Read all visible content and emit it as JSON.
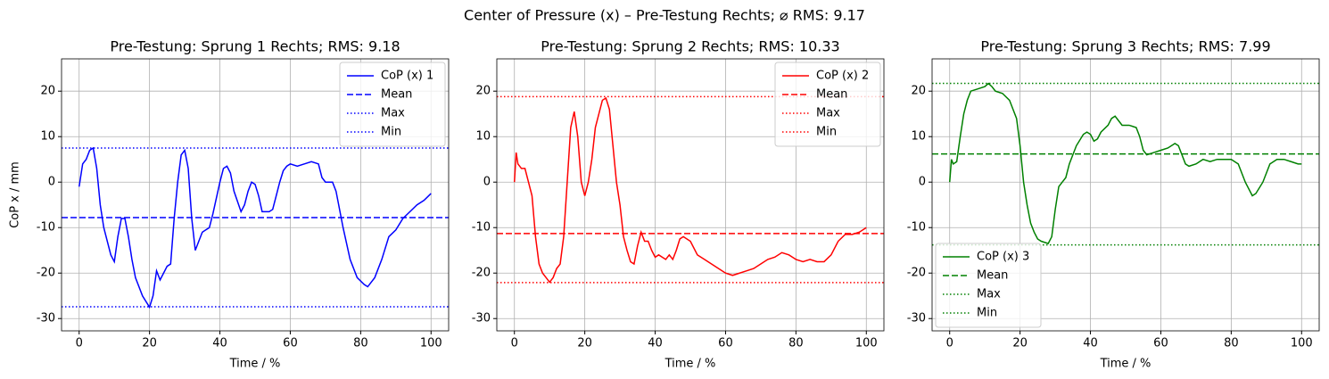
{
  "title": "Center of Pressure (x) – Pre-Testung Rechts; ⌀ RMS: 9.17",
  "chart_data": [
    {
      "type": "line",
      "title": "Pre-Testung: Sprung 1 Rechts; RMS: 9.18",
      "xlabel": "Time / %",
      "ylabel": "CoP x / mm",
      "xlim": [
        -5,
        105
      ],
      "ylim": [
        -32.7,
        27.1
      ],
      "xticks": [
        0,
        20,
        40,
        60,
        80,
        100
      ],
      "yticks": [
        -30,
        -20,
        -10,
        0,
        10,
        20
      ],
      "grid": true,
      "legend": "upper right",
      "x": [
        0,
        1,
        2,
        3,
        4,
        5,
        6,
        7,
        8,
        9,
        10,
        11,
        12,
        13,
        14,
        15,
        16,
        18,
        20,
        21,
        22,
        23,
        24,
        25,
        26,
        27,
        28,
        29,
        30,
        31,
        32,
        33,
        34,
        35,
        36,
        37,
        38,
        40,
        41,
        42,
        43,
        44,
        46,
        47,
        48,
        49,
        50,
        51,
        52,
        54,
        55,
        56,
        57,
        58,
        59,
        60,
        62,
        64,
        66,
        68,
        69,
        70,
        72,
        73,
        75,
        77,
        79,
        81,
        82,
        84,
        86,
        88,
        90,
        92,
        94,
        96,
        98,
        100
      ],
      "series": [
        {
          "name": "CoP (x) 1",
          "color": "#0000ff",
          "values": [
            -1,
            4,
            5,
            7,
            7.5,
            3,
            -5,
            -10,
            -13,
            -16,
            -17.5,
            -12,
            -8,
            -8,
            -12,
            -17,
            -21,
            -25,
            -27.5,
            -25,
            -19.5,
            -21.5,
            -20,
            -18.5,
            -18,
            -8,
            0,
            6,
            7,
            3,
            -8,
            -15,
            -13,
            -11,
            -10.5,
            -10,
            -7,
            0,
            3,
            3.5,
            2,
            -2,
            -6.5,
            -5,
            -2,
            0,
            -0.5,
            -3,
            -6.5,
            -6.5,
            -6,
            -3,
            0,
            2.5,
            3.5,
            4,
            3.5,
            4,
            4.5,
            4,
            1,
            0,
            0,
            -2,
            -10,
            -17,
            -21,
            -22.5,
            -23,
            -21,
            -17,
            -12,
            -10.5,
            -8,
            -6.5,
            -5,
            -4,
            -2.5
          ]
        }
      ],
      "hlines": [
        {
          "name": "Mean",
          "value": -7.8,
          "style": "dashed",
          "color": "#0000ff"
        },
        {
          "name": "Max",
          "value": 7.5,
          "style": "dotted",
          "color": "#0000ff"
        },
        {
          "name": "Min",
          "value": -27.4,
          "style": "dotted",
          "color": "#0000ff"
        }
      ]
    },
    {
      "type": "line",
      "title": "Pre-Testung: Sprung 2 Rechts; RMS: 10.33",
      "xlabel": "Time / %",
      "xlim": [
        -5,
        105
      ],
      "ylim": [
        -32.7,
        27.1
      ],
      "xticks": [
        0,
        20,
        40,
        60,
        80,
        100
      ],
      "yticks": [
        -30,
        -20,
        -10,
        0,
        10,
        20
      ],
      "grid": true,
      "legend": "upper right",
      "x": [
        0,
        0.5,
        1,
        2,
        3,
        4,
        5,
        6,
        7,
        8,
        9,
        10,
        11,
        12,
        13,
        14,
        15,
        16,
        17,
        18,
        19,
        20,
        21,
        22,
        23,
        25,
        26,
        27,
        28,
        29,
        30,
        31,
        32,
        33,
        34,
        35,
        36,
        37,
        38,
        39,
        40,
        41,
        42,
        43,
        44,
        45,
        46,
        47,
        48,
        50,
        52,
        54,
        56,
        58,
        60,
        62,
        64,
        66,
        68,
        70,
        72,
        74,
        76,
        78,
        80,
        82,
        84,
        86,
        88,
        90,
        92,
        94,
        96,
        98,
        100
      ],
      "series": [
        {
          "name": "CoP (x) 2",
          "color": "#ff0000",
          "values": [
            0,
            6.5,
            4,
            3,
            3,
            0,
            -3,
            -12,
            -18,
            -20,
            -21,
            -22,
            -21,
            -19,
            -18,
            -12,
            0,
            12,
            15.5,
            10,
            0,
            -3,
            0,
            5,
            12,
            18,
            18.5,
            16,
            8,
            0,
            -5,
            -12,
            -15,
            -17.5,
            -18,
            -14,
            -11,
            -13,
            -13,
            -15,
            -16.5,
            -16,
            -16.5,
            -17,
            -16,
            -17,
            -15,
            -12.5,
            -12,
            -13,
            -16,
            -17,
            -18,
            -19,
            -20,
            -20.5,
            -20,
            -19.5,
            -19,
            -18,
            -17,
            -16.5,
            -15.5,
            -16,
            -17,
            -17.5,
            -17,
            -17.5,
            -17.5,
            -16,
            -13,
            -11.5,
            -11.5,
            -11,
            -10
          ]
        }
      ],
      "hlines": [
        {
          "name": "Mean",
          "value": -11.3,
          "style": "dashed",
          "color": "#ff0000"
        },
        {
          "name": "Max",
          "value": 18.8,
          "style": "dotted",
          "color": "#ff0000"
        },
        {
          "name": "Min",
          "value": -22.1,
          "style": "dotted",
          "color": "#ff0000"
        }
      ]
    },
    {
      "type": "line",
      "title": "Pre-Testung: Sprung 3 Rechts; RMS: 7.99",
      "xlabel": "Time / %",
      "xlim": [
        -5,
        105
      ],
      "ylim": [
        -32.7,
        27.1
      ],
      "xticks": [
        0,
        20,
        40,
        60,
        80,
        100
      ],
      "yticks": [
        -30,
        -20,
        -10,
        0,
        10,
        20
      ],
      "grid": true,
      "legend": "lower left",
      "x": [
        0,
        0.5,
        1,
        2,
        3,
        4,
        5,
        6,
        8,
        10,
        11,
        12,
        13,
        15,
        17,
        19,
        20,
        21,
        22,
        23,
        24,
        25,
        26,
        28,
        29,
        30,
        31,
        32,
        33,
        34,
        36,
        38,
        39,
        40,
        41,
        42,
        43,
        45,
        46,
        47,
        48,
        49,
        51,
        53,
        54,
        55,
        56,
        58,
        60,
        62,
        64,
        65,
        66,
        67,
        68,
        70,
        72,
        74,
        76,
        78,
        80,
        82,
        84,
        86,
        87,
        89,
        91,
        93,
        95,
        97,
        99,
        100
      ],
      "series": [
        {
          "name": "CoP (x) 3",
          "color": "#008000",
          "values": [
            0,
            5,
            4,
            4.5,
            10,
            15,
            18,
            20,
            20.5,
            21,
            21.7,
            21,
            20,
            19.5,
            18,
            14,
            8,
            0,
            -5,
            -9,
            -11,
            -12.5,
            -13,
            -13.5,
            -12,
            -6,
            -1,
            0,
            1,
            4,
            8,
            10.5,
            11,
            10.5,
            9,
            9.5,
            11,
            12.5,
            14,
            14.5,
            13.5,
            12.5,
            12.5,
            12,
            10,
            7,
            6,
            6.5,
            7,
            7.5,
            8.5,
            8,
            6,
            4,
            3.5,
            4,
            5,
            4.5,
            5,
            5,
            5,
            4,
            0,
            -3,
            -2.5,
            0,
            4,
            5,
            5,
            4.5,
            4,
            4
          ]
        }
      ],
      "hlines": [
        {
          "name": "Mean",
          "value": 6.2,
          "style": "dashed",
          "color": "#008000"
        },
        {
          "name": "Max",
          "value": 21.7,
          "style": "dotted",
          "color": "#008000"
        },
        {
          "name": "Min",
          "value": -13.8,
          "style": "dotted",
          "color": "#008000"
        }
      ]
    }
  ]
}
